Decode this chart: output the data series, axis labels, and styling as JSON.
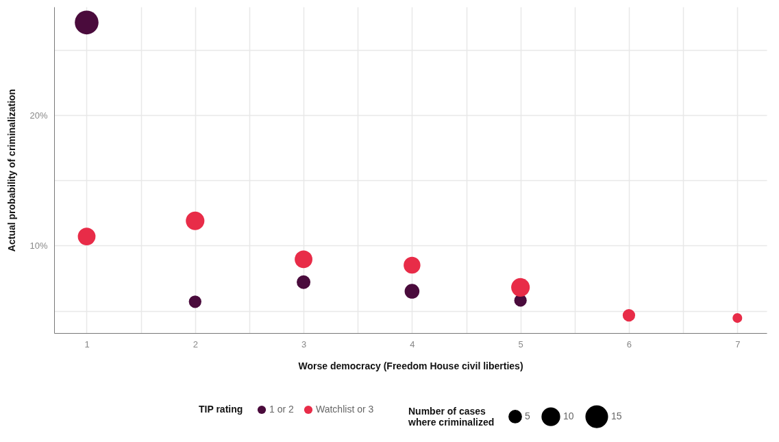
{
  "chart_data": {
    "type": "bubble",
    "xlabel": "Worse democracy (Freedom House civil liberties)",
    "ylabel": "Actual probability of criminalization",
    "legend_title": "TIP rating",
    "legend": "bottom",
    "grid": true,
    "annotations": [
      "Number of cases where criminalized"
    ],
    "size_legend": [
      5,
      10,
      15
    ],
    "xlim": [
      0.7,
      7.27
    ],
    "xticks": [
      1,
      {
        "value": 1.5,
        "label": null
      },
      2,
      {
        "value": 2.5,
        "label": null
      },
      3,
      {
        "value": 3.5,
        "label": null
      },
      4,
      {
        "value": 4.5,
        "label": null
      },
      5,
      {
        "value": 5.5,
        "label": null
      },
      6,
      {
        "value": 6.5,
        "label": null
      },
      7
    ],
    "ylim": [
      3.3,
      28.3
    ],
    "yticks": [
      {
        "value": 5,
        "label": null
      },
      {
        "value": 10,
        "label": "10%"
      },
      {
        "value": 15,
        "label": null
      },
      {
        "value": 20,
        "label": "20%"
      },
      {
        "value": 25,
        "label": null
      }
    ],
    "series": [
      {
        "name": "1 or 2",
        "color": "#4a0b3c",
        "x": [
          1,
          2,
          3,
          4,
          5
        ],
        "values": [
          27.1,
          5.7,
          7.2,
          6.5,
          5.8
        ],
        "sizes": [
          18,
          5,
          6,
          7,
          5
        ]
      },
      {
        "name": "Watchlist or 3",
        "color": "#e82c48",
        "x": [
          1,
          2,
          3,
          4,
          5,
          6,
          7
        ],
        "values": [
          10.7,
          11.9,
          8.95,
          8.5,
          6.8,
          4.66,
          4.45
        ],
        "sizes": [
          10,
          11,
          10,
          9,
          11,
          5,
          3
        ]
      }
    ]
  }
}
